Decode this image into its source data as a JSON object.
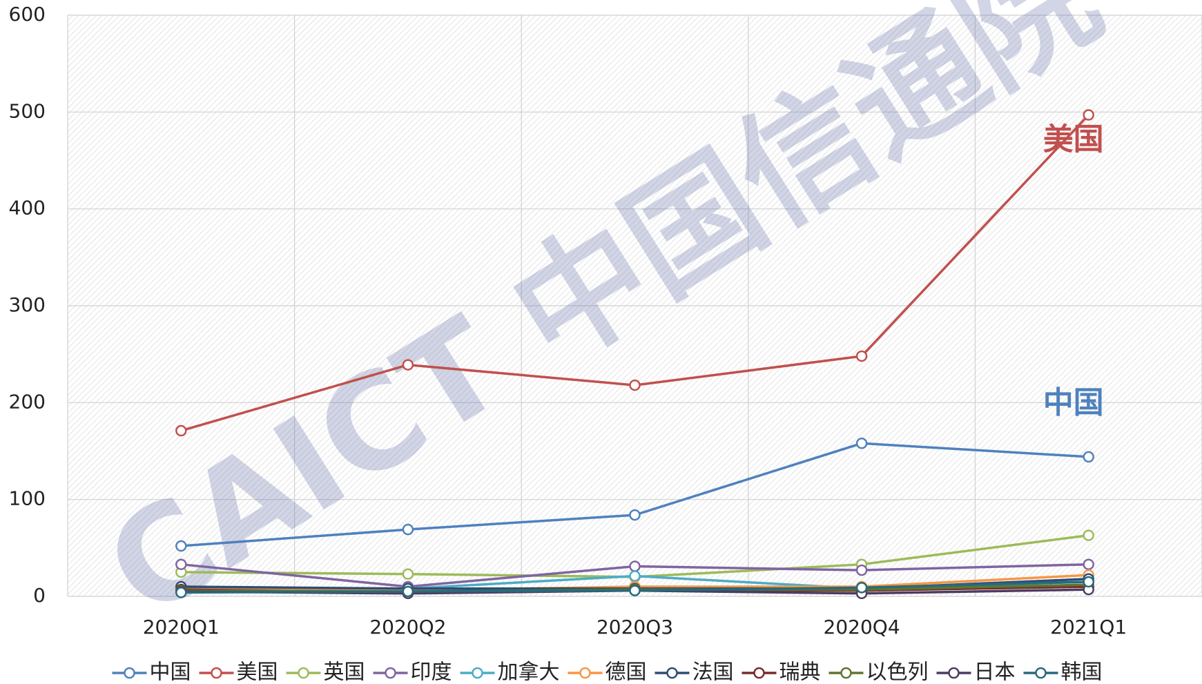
{
  "chart_data": {
    "type": "line",
    "watermark": "CAICT 中国信通院",
    "annotations": [
      {
        "text": "美国",
        "color": "#c0504d",
        "x": 4,
        "y": 470
      },
      {
        "text": "中国",
        "color": "#4f81bd",
        "x": 4,
        "y": 198
      }
    ],
    "categories": [
      "2020Q1",
      "2020Q2",
      "2020Q3",
      "2020Q4",
      "2021Q1"
    ],
    "series": [
      {
        "name": "中国",
        "color": "#4f81bd",
        "values": [
          52,
          69,
          84,
          158,
          144
        ]
      },
      {
        "name": "美国",
        "color": "#c0504d",
        "values": [
          171,
          239,
          218,
          248,
          497
        ]
      },
      {
        "name": "英国",
        "color": "#9bbb59",
        "values": [
          25,
          23,
          20,
          33,
          63
        ]
      },
      {
        "name": "印度",
        "color": "#8064a2",
        "values": [
          33,
          10,
          31,
          27,
          33
        ]
      },
      {
        "name": "加拿大",
        "color": "#4bacc6",
        "values": [
          5,
          8,
          21,
          8,
          15
        ]
      },
      {
        "name": "德国",
        "color": "#f79646",
        "values": [
          8,
          6,
          10,
          10,
          22
        ]
      },
      {
        "name": "法国",
        "color": "#2c4d75",
        "values": [
          10,
          8,
          8,
          8,
          18
        ]
      },
      {
        "name": "瑞典",
        "color": "#772c2a",
        "values": [
          7,
          4,
          7,
          6,
          10
        ]
      },
      {
        "name": "以色列",
        "color": "#5f7530",
        "values": [
          6,
          5,
          7,
          7,
          12
        ]
      },
      {
        "name": "日本",
        "color": "#4d3b62",
        "values": [
          5,
          3,
          6,
          3,
          7
        ]
      },
      {
        "name": "韩国",
        "color": "#276a7c",
        "values": [
          4,
          5,
          6,
          9,
          15
        ]
      }
    ],
    "ylim": [
      0,
      600
    ],
    "yticks": [
      0,
      100,
      200,
      300,
      400,
      500,
      600
    ],
    "grid": true,
    "legend": "bottom"
  }
}
